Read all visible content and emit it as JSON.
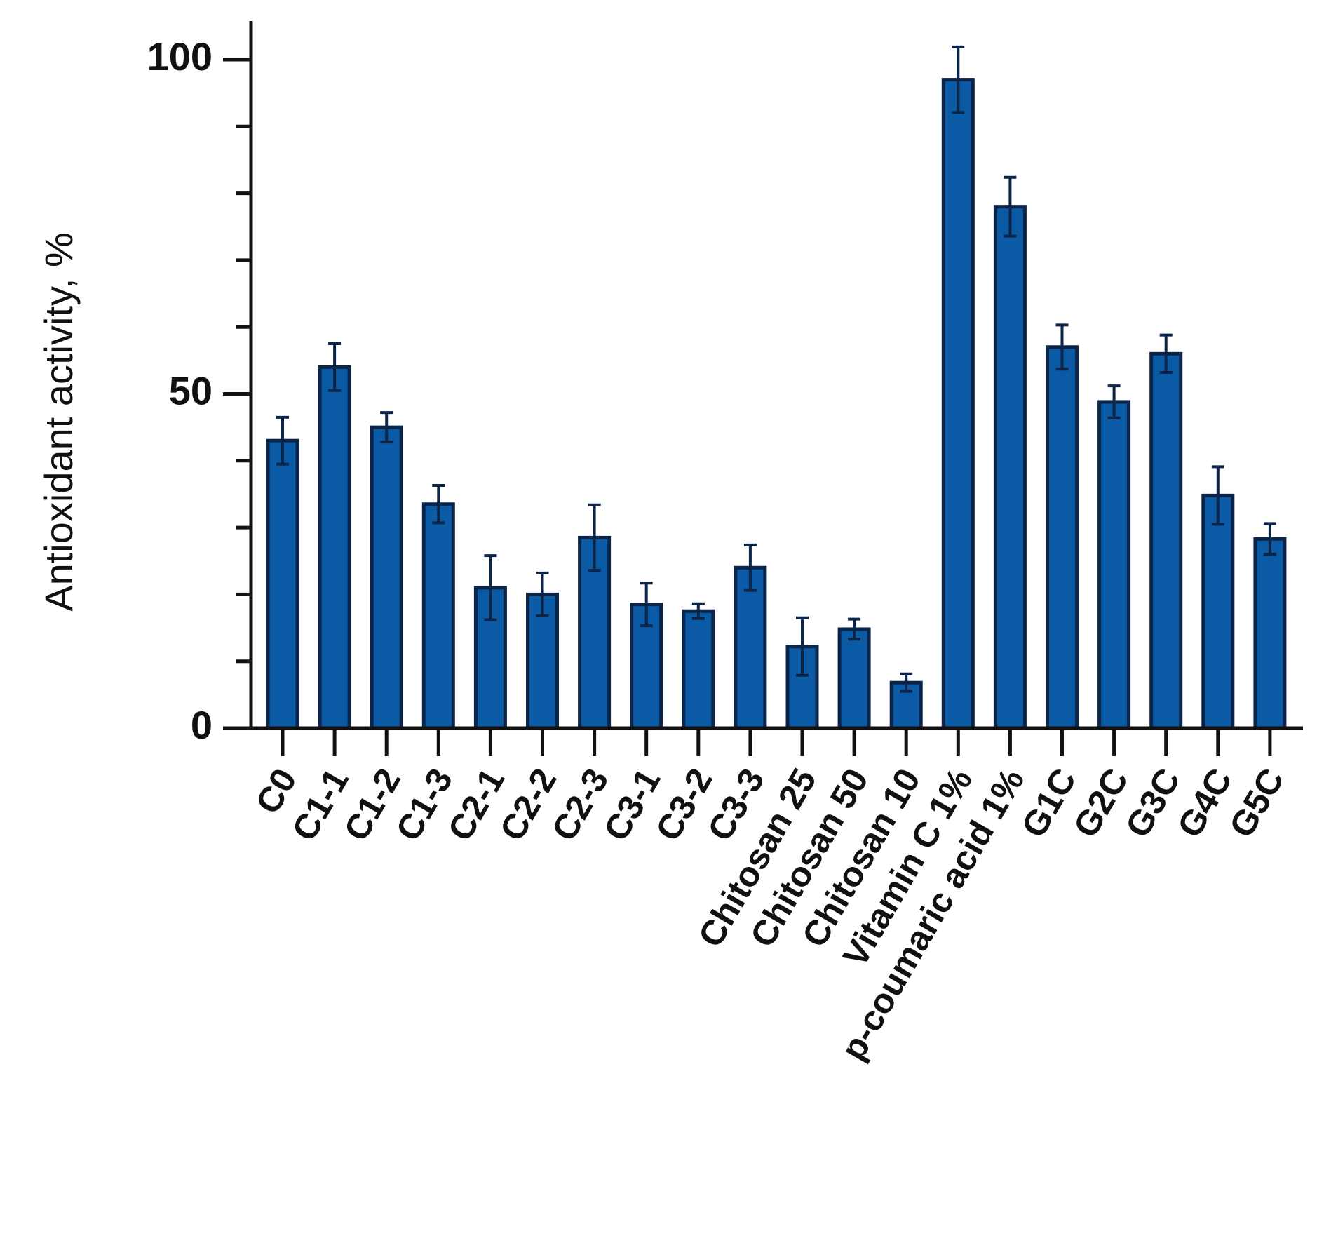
{
  "chart_data": {
    "type": "bar",
    "title": "",
    "xlabel": "",
    "ylabel": "Antioxidant activity, %",
    "ylim": [
      0,
      100
    ],
    "yticks": [
      0,
      50,
      100
    ],
    "grid": false,
    "legend": "none",
    "categories": [
      "C0",
      "C1-1",
      "C1-2",
      "C1-3",
      "C2-1",
      "C2-2",
      "C2-3",
      "C3-1",
      "C3-2",
      "C3-3",
      "Chitosan  25",
      "Chitosan  50",
      "Chitosan  10",
      "Vitamin C  1%",
      "p-coumaric acid  1%",
      "G1C",
      "G2C",
      "G3C",
      "G4C",
      "G5C"
    ],
    "series": [
      {
        "values": [
          43,
          54,
          45,
          33.5,
          21,
          20,
          28.5,
          18.5,
          17.5,
          24,
          12.2,
          14.8,
          6.8,
          97,
          78,
          57,
          48.8,
          56,
          34.8,
          28.3
        ],
        "errors": [
          3.5,
          3.5,
          2.2,
          2.8,
          4.8,
          3.2,
          4.9,
          3.2,
          1.1,
          3.4,
          4.3,
          1.5,
          1.3,
          4.9,
          4.4,
          3.3,
          2.4,
          2.8,
          4.3,
          2.3
        ],
        "color": "#0a5aa5"
      }
    ],
    "colors": {
      "bar_fill": "#0a5aa5",
      "bar_edge": "#0b2447",
      "axis": "#111111"
    }
  }
}
